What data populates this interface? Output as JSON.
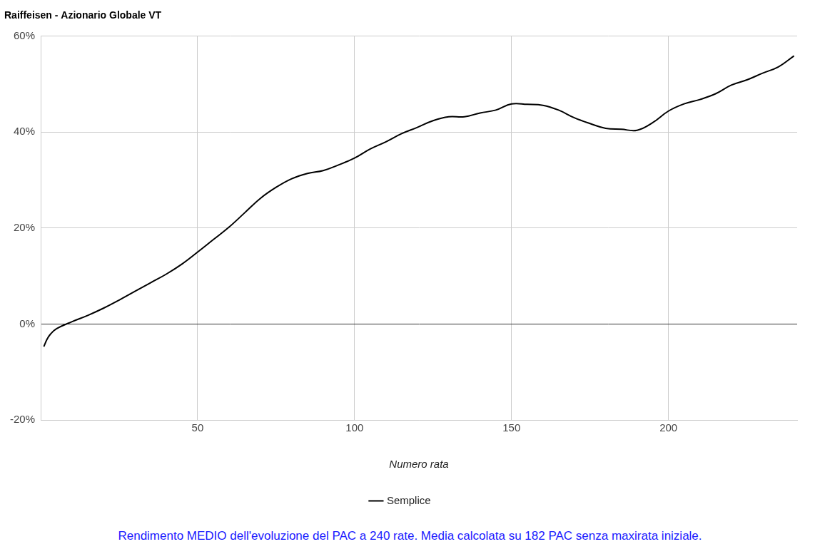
{
  "chart_data": {
    "type": "line",
    "title": "Raiffeisen - Azionario Globale VT",
    "x_label": "Numero rata",
    "caption": "Rendimento MEDIO dell'evoluzione del PAC a 240 rate. Media calcolata su 182 PAC senza maxirata iniziale.",
    "x": [
      1,
      2,
      3,
      5,
      10,
      15,
      20,
      25,
      30,
      35,
      40,
      45,
      50,
      55,
      60,
      65,
      70,
      75,
      80,
      85,
      90,
      95,
      100,
      105,
      110,
      115,
      120,
      125,
      130,
      135,
      140,
      145,
      150,
      155,
      160,
      165,
      170,
      175,
      180,
      185,
      190,
      195,
      200,
      205,
      210,
      215,
      220,
      225,
      230,
      235,
      240
    ],
    "series": [
      {
        "name": "Semplice",
        "color": "#000000",
        "values": [
          -4.7,
          -3.2,
          -2.2,
          -1.0,
          0.5,
          1.8,
          3.3,
          5.0,
          6.8,
          8.6,
          10.4,
          12.5,
          15.0,
          17.6,
          20.2,
          23.2,
          26.2,
          28.5,
          30.3,
          31.4,
          32.0,
          33.2,
          34.6,
          36.5,
          38.0,
          39.7,
          41.0,
          42.4,
          43.2,
          43.2,
          44.0,
          44.6,
          45.9,
          45.8,
          45.6,
          44.6,
          43.0,
          41.8,
          40.8,
          40.6,
          40.4,
          42.0,
          44.4,
          45.9,
          46.8,
          48.0,
          49.8,
          50.9,
          52.3,
          53.6,
          55.9
        ]
      }
    ],
    "xlim": [
      0,
      241
    ],
    "xticks": [
      50,
      100,
      150,
      200
    ],
    "ylim": [
      -20,
      60
    ],
    "yticks": [
      {
        "value": -20,
        "label": "-20%"
      },
      {
        "value": 0,
        "label": "0%"
      },
      {
        "value": 20,
        "label": "20%"
      },
      {
        "value": 40,
        "label": "40%"
      },
      {
        "value": 60,
        "label": "60%"
      }
    ],
    "grid": true,
    "legend": "bottom",
    "marker": "none",
    "line_style": "solid"
  }
}
